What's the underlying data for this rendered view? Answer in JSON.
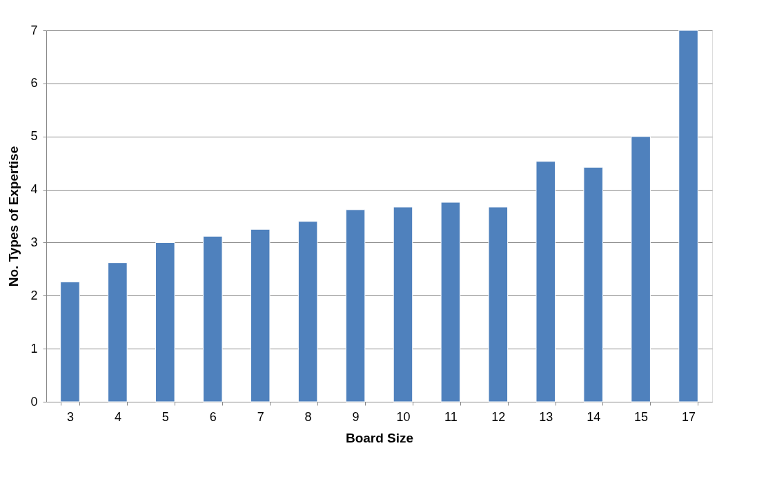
{
  "chart_data": {
    "type": "bar",
    "xlabel": "Board Size",
    "ylabel": "No. Types of Expertise",
    "categories": [
      "3",
      "4",
      "5",
      "6",
      "7",
      "8",
      "9",
      "10",
      "11",
      "12",
      "13",
      "14",
      "15",
      "17"
    ],
    "series": [
      {
        "color": "#4f81bd",
        "values": [
          2.26,
          2.62,
          3.0,
          3.12,
          3.25,
          3.4,
          3.62,
          3.67,
          3.76,
          3.67,
          4.53,
          4.42,
          5.0,
          7.0
        ]
      }
    ],
    "ylim": [
      0,
      7
    ],
    "yticks": [
      0,
      1,
      2,
      3,
      4,
      5,
      6,
      7
    ],
    "grid": "y"
  }
}
